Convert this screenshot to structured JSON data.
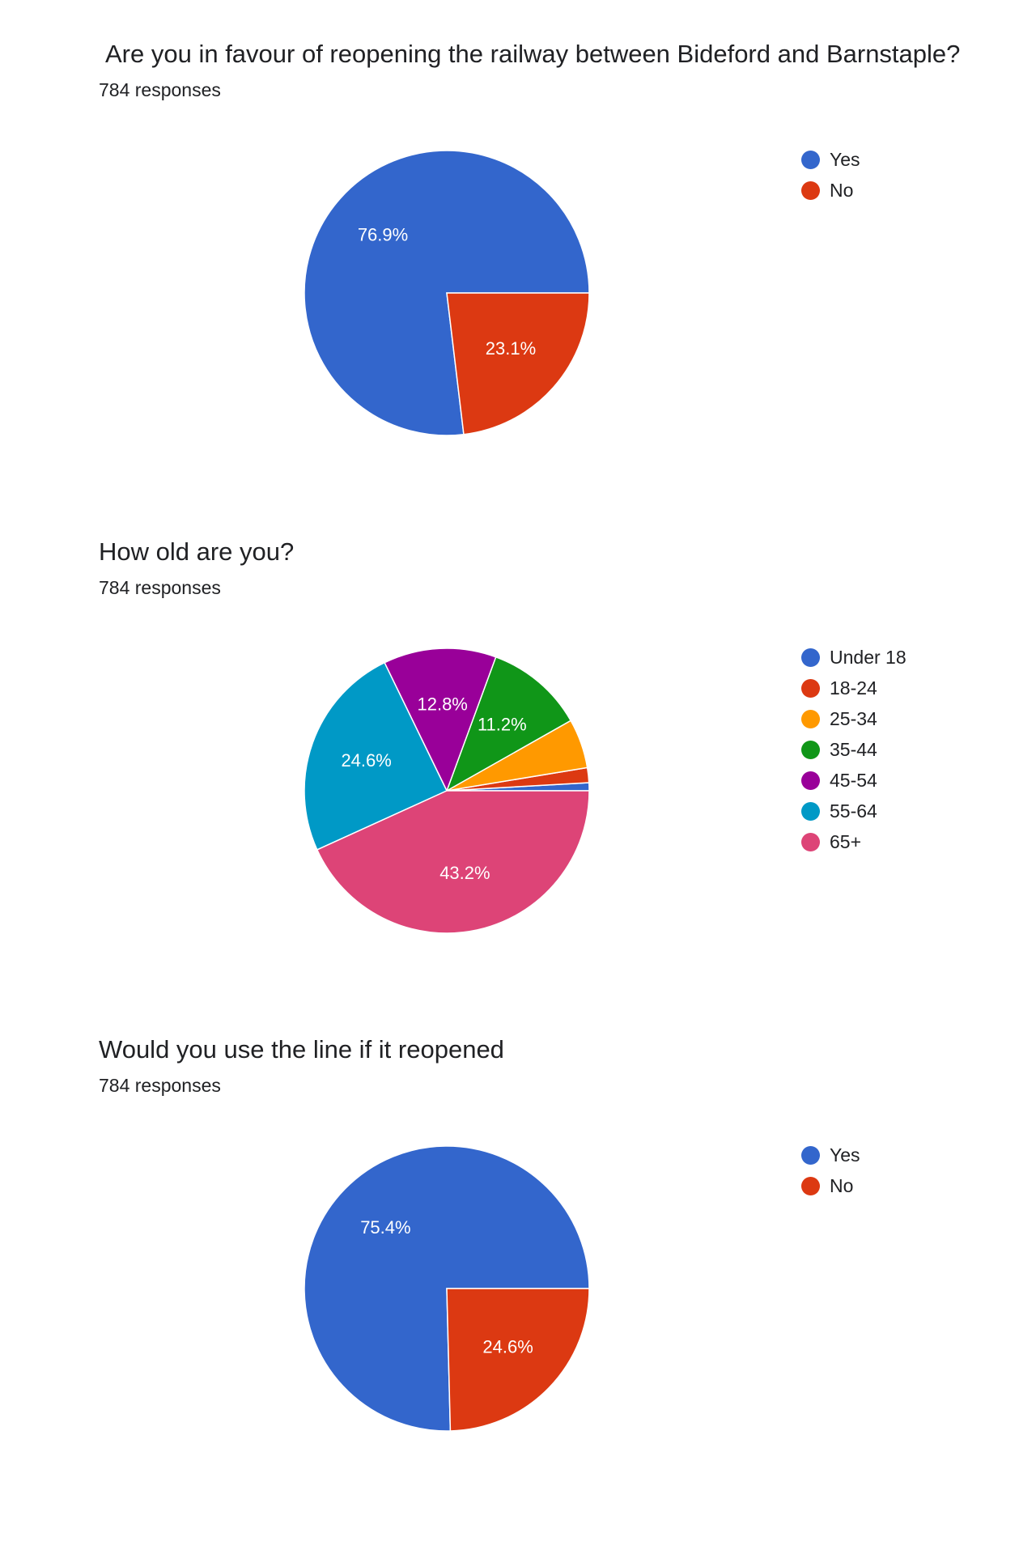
{
  "chart_data": [
    {
      "type": "pie",
      "title": "Are you in favour of reopening the railway between Bideford and Barnstaple?",
      "subtitle": "784 responses",
      "categories": [
        "Yes",
        "No"
      ],
      "values": [
        76.9,
        23.1
      ],
      "data_labels": [
        "76.9%",
        "23.1%"
      ],
      "colors": [
        "#3366cc",
        "#dc3912"
      ],
      "legend_position": "right"
    },
    {
      "type": "pie",
      "title": "How old are you?",
      "subtitle": "784 responses",
      "categories": [
        "Under 18",
        "18-24",
        "25-34",
        "35-44",
        "45-54",
        "55-64",
        "65+"
      ],
      "values": [
        0.9,
        1.7,
        5.6,
        11.2,
        12.8,
        24.6,
        43.2
      ],
      "data_labels": [
        "",
        "",
        "",
        "11.2%",
        "12.8%",
        "24.6%",
        "43.2%"
      ],
      "colors": [
        "#3366cc",
        "#dc3912",
        "#ff9900",
        "#109618",
        "#990099",
        "#0099c6",
        "#dd4477"
      ],
      "legend_position": "right"
    },
    {
      "type": "pie",
      "title": "Would you use the line if it reopened",
      "subtitle": "784 responses",
      "categories": [
        "Yes",
        "No"
      ],
      "values": [
        75.4,
        24.6
      ],
      "data_labels": [
        "75.4%",
        "24.6%"
      ],
      "colors": [
        "#3366cc",
        "#dc3912"
      ],
      "legend_position": "right"
    }
  ]
}
